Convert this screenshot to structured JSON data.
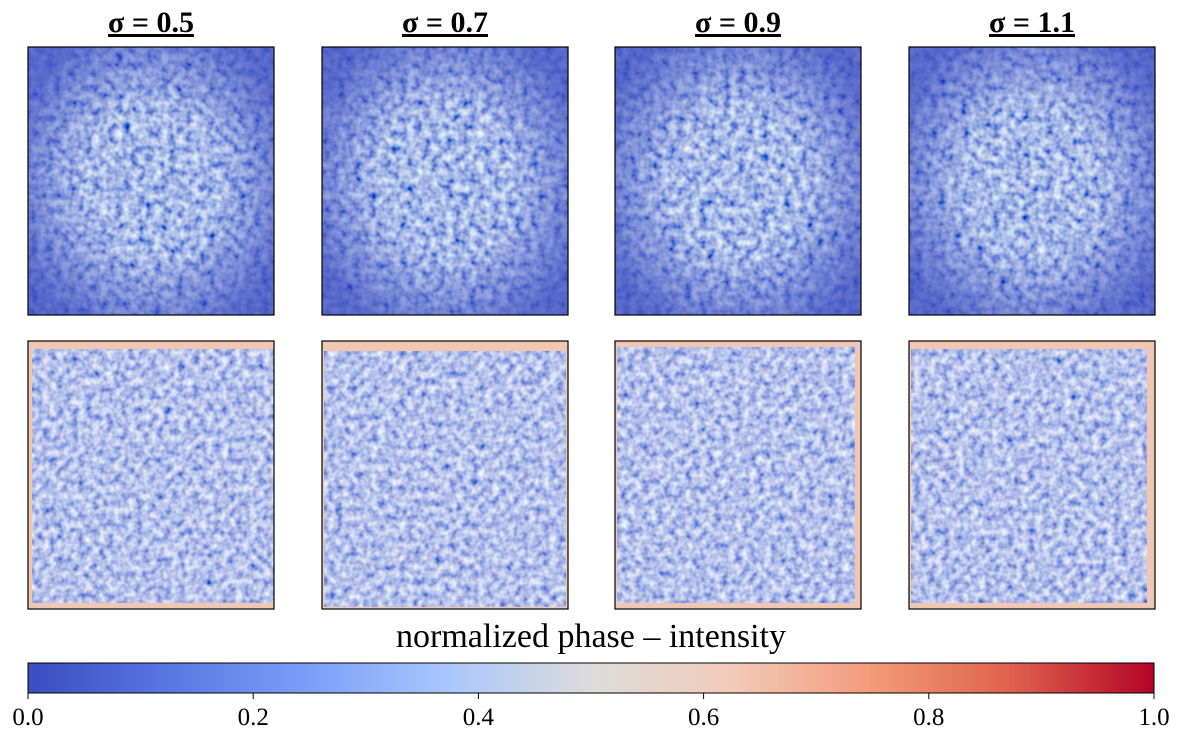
{
  "chart_data": {
    "type": "heatmap",
    "panel_titles": [
      "σ = 0.5",
      "σ = 0.7",
      "σ = 0.9",
      "σ = 1.1"
    ],
    "colorbar": {
      "label": "normalized phase – intensity",
      "lim": [
        0,
        1
      ],
      "ticks": [
        {
          "value": 0,
          "label": "0.0"
        },
        0.2,
        0.4,
        0.6,
        0.8,
        {
          "value": 1,
          "label": "1.0"
        }
      ],
      "colors": [
        "#3b4cc0",
        "#5977e3",
        "#7b9ff9",
        "#aac7fd",
        "#dddcdc",
        "#f2cbb7",
        "#f49a7b",
        "#de604d",
        "#b40426"
      ]
    }
  }
}
